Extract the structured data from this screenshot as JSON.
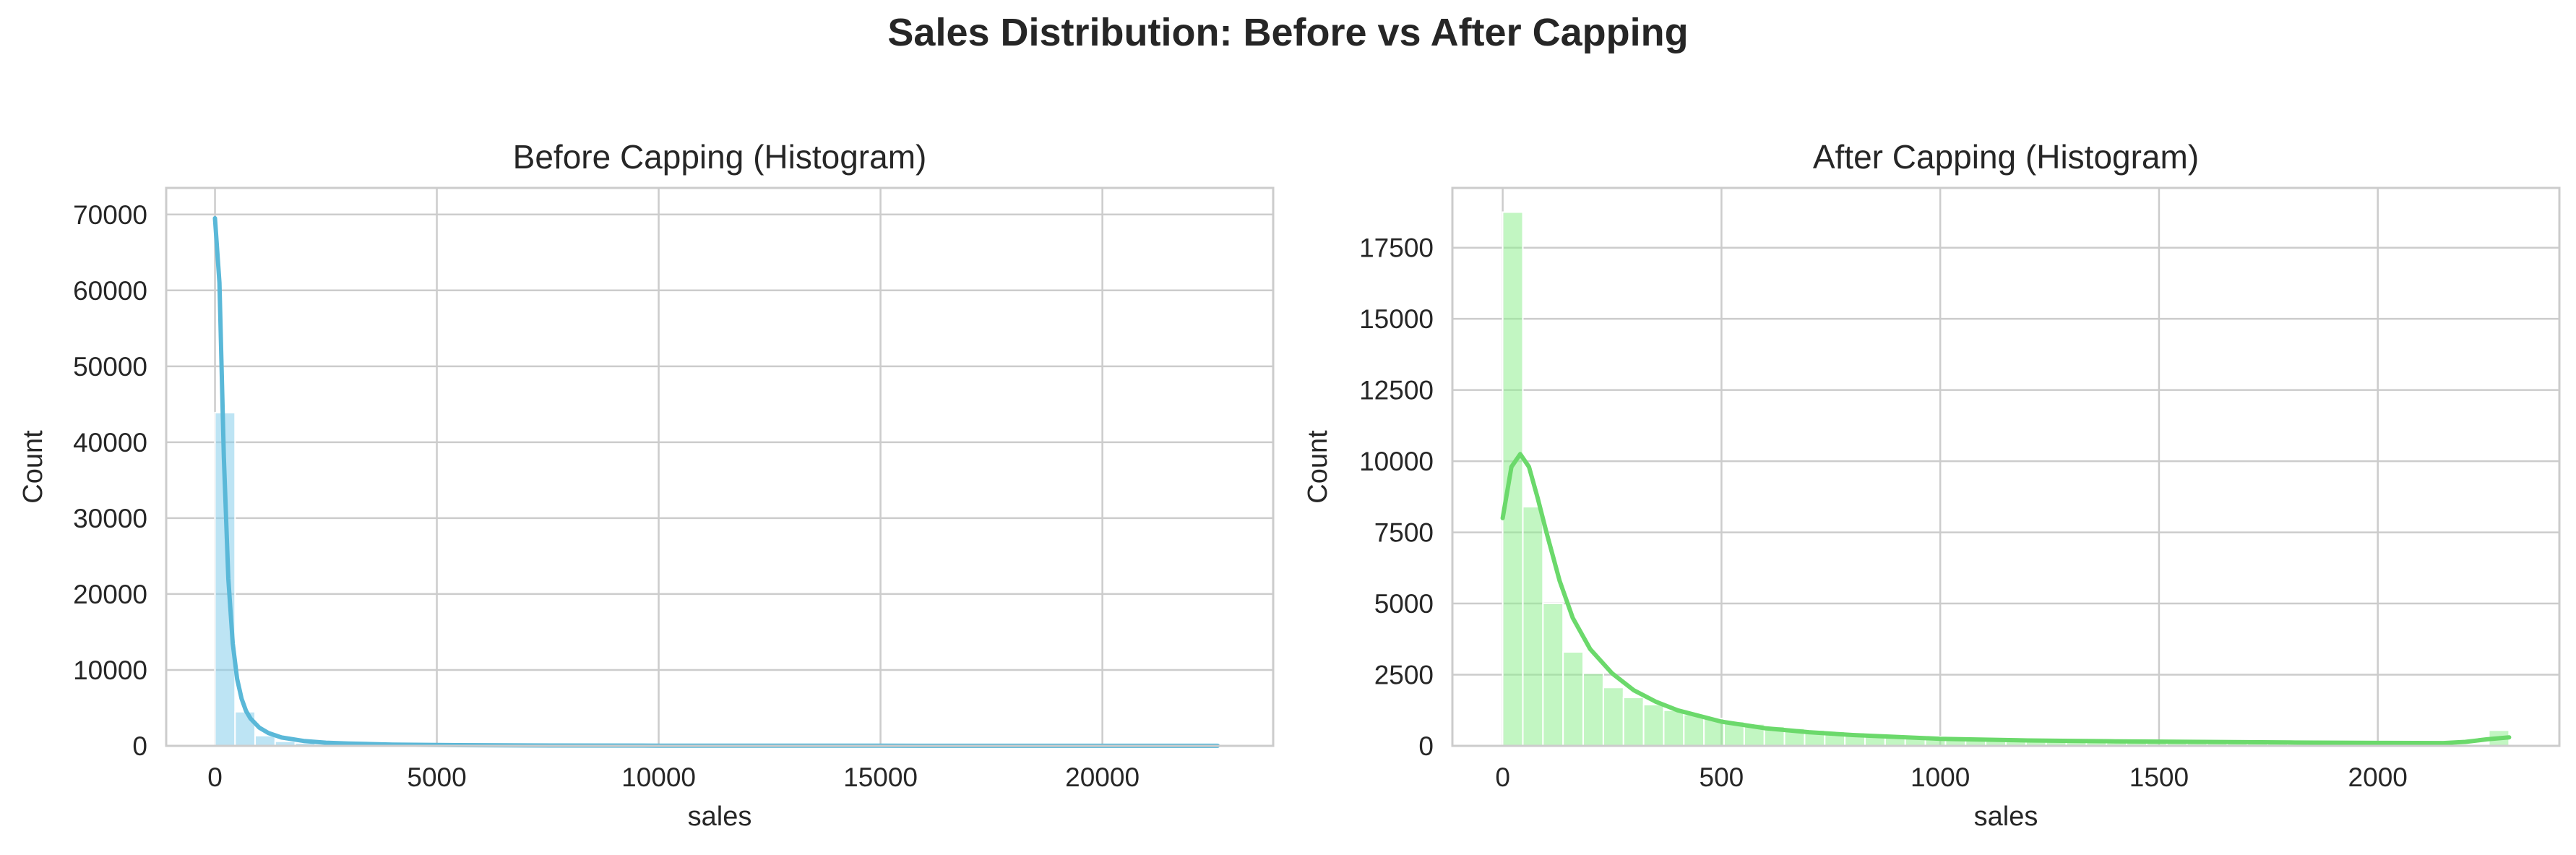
{
  "figure": {
    "suptitle": "Sales Distribution: Before vs After Capping"
  },
  "chart_data": [
    {
      "type": "bar",
      "subtype": "histogram_with_kde",
      "title": "Before Capping (Histogram)",
      "xlabel": "sales",
      "ylabel": "Count",
      "xlim": [
        -1100,
        23850
      ],
      "ylim": [
        0,
        73500
      ],
      "xticks": [
        0,
        5000,
        10000,
        15000,
        20000
      ],
      "yticks": [
        0,
        10000,
        20000,
        30000,
        40000,
        50000,
        60000,
        70000
      ],
      "grid": true,
      "color": "#87CEEB",
      "bin_start": 0,
      "bin_width": 452,
      "counts": [
        43900,
        4500,
        1350,
        600,
        380,
        230,
        160,
        120,
        90,
        70,
        55,
        45,
        35,
        30,
        25,
        20,
        18,
        15,
        12,
        10,
        9,
        8,
        7,
        6,
        5,
        5,
        4,
        4,
        3,
        3,
        3,
        2,
        2,
        2,
        2,
        2,
        1,
        1,
        1,
        1,
        1,
        1,
        1,
        1,
        1,
        1,
        1,
        1,
        1,
        1
      ],
      "kde": {
        "x": [
          0,
          100,
          200,
          300,
          400,
          500,
          600,
          700,
          800,
          1000,
          1200,
          1500,
          2000,
          2500,
          3000,
          4000,
          5000,
          7000,
          10000,
          15000,
          20000,
          22600
        ],
        "y": [
          69500,
          61000,
          38000,
          22000,
          13500,
          8800,
          6200,
          4600,
          3600,
          2400,
          1700,
          1100,
          650,
          420,
          300,
          170,
          110,
          60,
          30,
          15,
          8,
          5
        ]
      }
    },
    {
      "type": "bar",
      "subtype": "histogram_with_kde",
      "title": "After Capping (Histogram)",
      "xlabel": "sales",
      "ylabel": "Count",
      "xlim": [
        -115,
        2415
      ],
      "ylim": [
        0,
        19600
      ],
      "xticks": [
        0,
        500,
        1000,
        1500,
        2000
      ],
      "yticks": [
        0,
        2500,
        5000,
        7500,
        10000,
        12500,
        15000,
        17500
      ],
      "grid": true,
      "color": "#90EE90",
      "bin_start": 0,
      "bin_width": 46,
      "counts": [
        18750,
        8400,
        5000,
        3300,
        2550,
        2050,
        1700,
        1450,
        1250,
        1100,
        960,
        860,
        770,
        690,
        620,
        560,
        510,
        470,
        430,
        390,
        360,
        330,
        305,
        280,
        260,
        240,
        220,
        205,
        190,
        180,
        170,
        165,
        160,
        150,
        140,
        130,
        120,
        110,
        105,
        100,
        95,
        90,
        85,
        80,
        75,
        70,
        70,
        65,
        60,
        550
      ],
      "kde": {
        "x": [
          0,
          20,
          40,
          60,
          80,
          100,
          130,
          160,
          200,
          250,
          300,
          350,
          400,
          500,
          600,
          700,
          800,
          1000,
          1200,
          1300,
          1400,
          1600,
          1800,
          2000,
          2150,
          2200,
          2250,
          2300
        ],
        "y": [
          8000,
          9800,
          10250,
          9800,
          8700,
          7500,
          5800,
          4500,
          3400,
          2550,
          1950,
          1550,
          1250,
          850,
          620,
          480,
          380,
          250,
          190,
          175,
          160,
          140,
          120,
          105,
          100,
          140,
          230,
          300
        ]
      }
    }
  ]
}
